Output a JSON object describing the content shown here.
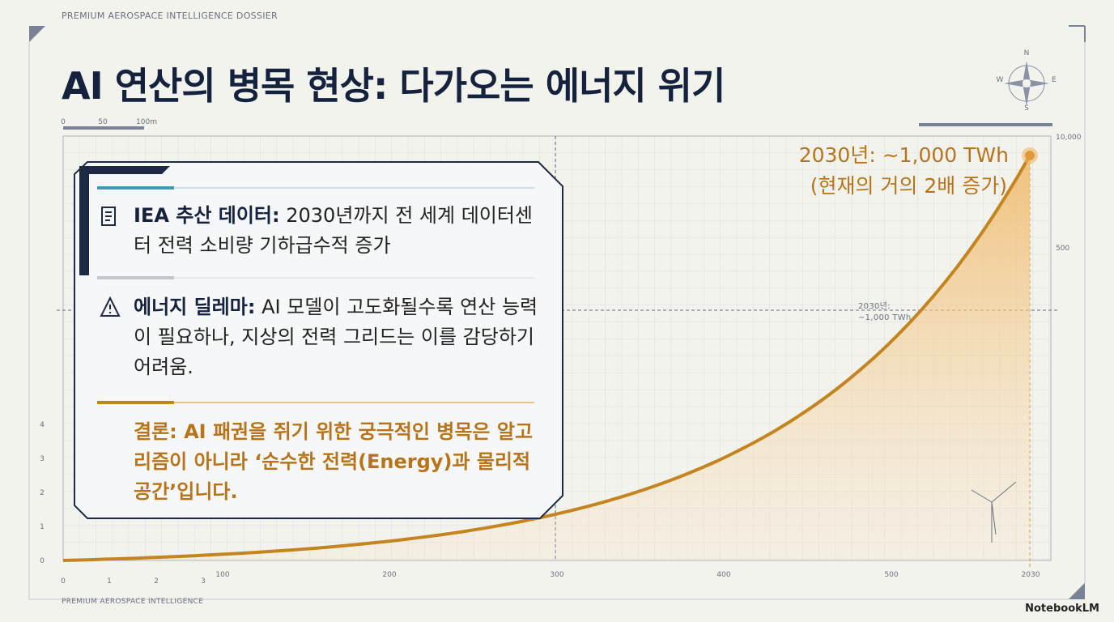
{
  "header": {
    "kicker": "PREMIUM AEROSPACE INTELLIGENCE DOSSIER",
    "title": "AI 연산의 병목 현상: 다가오는 에너지 위기"
  },
  "card": {
    "sections": [
      {
        "heading": "IEA 추산 데이터:",
        "body": "2030년까지 전 세계 데이터센터 전력 소비량 기하급수적 증가"
      },
      {
        "heading": "에너지 딜레마:",
        "body": "AI 모델이 고도화될수록 연산 능력이 필요하나, 지상의 전력 그리드는 이를 감당하기 어려움."
      }
    ],
    "conclusion": "결론: AI 패권을 쥐기 위한 궁극적인 병목은 알고리즘이 아니라 ‘순수한 전력(Energy)과 물리적 공간’입니다."
  },
  "callout": {
    "line1": "2030년: ~1,000 TWh",
    "line2": "(현재의 거의 2배 증가)"
  },
  "guide_note": {
    "line1": "2030년:",
    "line2": "~1,000 TWh"
  },
  "axes": {
    "bottom": [
      "100",
      "200",
      "300",
      "400",
      "500",
      "2030"
    ],
    "bottom_small": [
      "0",
      "1",
      "2",
      "3"
    ],
    "left": [
      "4",
      "3",
      "2",
      "1",
      "0"
    ],
    "right": [
      "10,000",
      "500"
    ],
    "scale": [
      "0",
      "50",
      "100m"
    ]
  },
  "compass": [
    "N",
    "E",
    "S",
    "W"
  ],
  "footer": {
    "kicker": "PREMIUM AEROSPACE INTELLIGENCE",
    "brand": "NotebookLM"
  }
}
